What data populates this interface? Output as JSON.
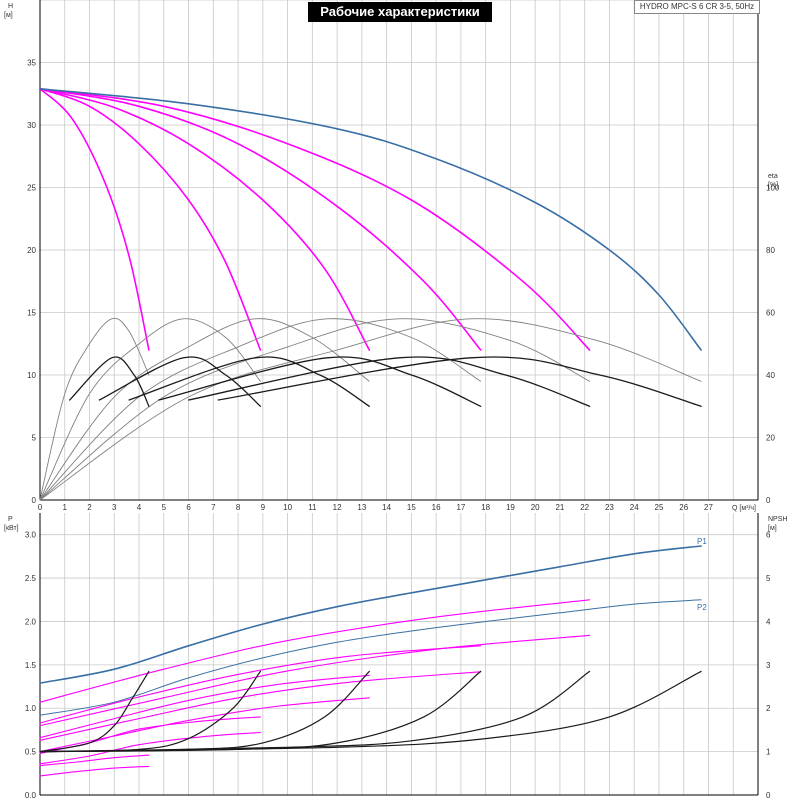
{
  "title": "Рабочие характеристики",
  "model": "HYDRO MPC-S 6 CR 3-5, 50Hz",
  "colors": {
    "grid": "#c8c8c8",
    "axis": "#000000",
    "qh_variable": "#ff00ff",
    "qh_full": "#3a6fa5",
    "efficiency": "#808080",
    "efficiency_dark": "#1a1a1a",
    "npsh": "#1a1a1a",
    "power_p1": "#3a6fa5",
    "power_p2": "#3a6fa5",
    "power_variable": "#ff00ff"
  },
  "chart_data": [
    {
      "type": "line",
      "panel": "upper",
      "xlabel": "Q [м³/ч]",
      "ylabel": "H [м]",
      "y2label": "eta [%]",
      "xlim": [
        0,
        29
      ],
      "ylim": [
        0,
        40
      ],
      "y2lim": [
        0,
        160
      ],
      "x_ticks": [
        0,
        1,
        2,
        3,
        4,
        5,
        6,
        7,
        8,
        9,
        10,
        11,
        12,
        13,
        14,
        15,
        16,
        17,
        18,
        19,
        20,
        21,
        22,
        23,
        24,
        25,
        26,
        27
      ],
      "x_tick_labels": [
        "0",
        "1",
        "2",
        "3",
        "4",
        "5",
        "6",
        "7",
        "8",
        "9",
        "10",
        "11",
        "12",
        "13",
        "14",
        "15",
        "16",
        "17",
        "18",
        "19",
        "20",
        "21",
        "22",
        "23",
        "24",
        "25",
        "26",
        "27"
      ],
      "y_ticks": [
        0,
        5,
        10,
        15,
        20,
        25,
        30,
        35
      ],
      "y_tick_labels": [
        "0",
        "5",
        "10",
        "15",
        "20",
        "25",
        "30",
        "35"
      ],
      "y2_ticks": [
        0,
        20,
        40,
        60,
        80,
        100
      ],
      "y2_tick_labels": [
        "0",
        "20",
        "40",
        "60",
        "80",
        "100"
      ],
      "y_unit_labels": [
        "H",
        "[м]"
      ],
      "y2_unit_labels": [
        "eta",
        "[%]"
      ],
      "grid": true,
      "series": [
        {
          "group": "qh_variable",
          "points": [
            [
              0,
              32.9
            ],
            [
              1.3,
              30.5
            ],
            [
              2.6,
              25.5
            ],
            [
              3.6,
              19.5
            ],
            [
              4.4,
              12.0
            ]
          ]
        },
        {
          "group": "qh_variable",
          "points": [
            [
              0,
              32.9
            ],
            [
              2,
              31.5
            ],
            [
              4,
              28.5
            ],
            [
              6,
              24.0
            ],
            [
              7.5,
              19.0
            ],
            [
              8.9,
              12.0
            ]
          ]
        },
        {
          "group": "qh_variable",
          "points": [
            [
              0,
              32.9
            ],
            [
              3,
              31.4
            ],
            [
              6,
              28.5
            ],
            [
              9,
              24.0
            ],
            [
              11.5,
              18.5
            ],
            [
              13.3,
              12.0
            ]
          ]
        },
        {
          "group": "qh_variable",
          "points": [
            [
              0,
              32.9
            ],
            [
              4,
              31.5
            ],
            [
              8,
              28.5
            ],
            [
              12,
              23.5
            ],
            [
              15.5,
              17.5
            ],
            [
              17.8,
              12.0
            ]
          ]
        },
        {
          "group": "qh_variable",
          "points": [
            [
              0,
              32.9
            ],
            [
              5,
              31.5
            ],
            [
              10,
              28.5
            ],
            [
              15,
              24.0
            ],
            [
              19.5,
              17.5
            ],
            [
              22.2,
              12.0
            ]
          ]
        },
        {
          "group": "qh_full",
          "points": [
            [
              0,
              32.9
            ],
            [
              6,
              31.7
            ],
            [
              12,
              29.7
            ],
            [
              16,
              27.3
            ],
            [
              20,
              23.8
            ],
            [
              23,
              20.0
            ],
            [
              25,
              16.4
            ],
            [
              26.7,
              12.0
            ]
          ]
        },
        {
          "group": "efficiency",
          "axis": "y2",
          "points": [
            [
              0,
              0
            ],
            [
              1,
              34
            ],
            [
              2,
              50
            ],
            [
              2.9,
              58
            ],
            [
              3.6,
              54
            ],
            [
              4.4,
              40
            ]
          ]
        },
        {
          "group": "efficiency",
          "axis": "y2",
          "points": [
            [
              0,
              0
            ],
            [
              2,
              34
            ],
            [
              4,
              50
            ],
            [
              5.8,
              58
            ],
            [
              7.5,
              52
            ],
            [
              8.9,
              38
            ]
          ]
        },
        {
          "group": "efficiency",
          "axis": "y2",
          "points": [
            [
              0,
              0
            ],
            [
              3,
              33
            ],
            [
              6,
              49
            ],
            [
              8.7,
              58
            ],
            [
              11,
              52
            ],
            [
              13.3,
              38
            ]
          ]
        },
        {
          "group": "efficiency",
          "axis": "y2",
          "points": [
            [
              0,
              0
            ],
            [
              4,
              33
            ],
            [
              8,
              49
            ],
            [
              11.6,
              58
            ],
            [
              15,
              52
            ],
            [
              17.8,
              38
            ]
          ]
        },
        {
          "group": "efficiency",
          "axis": "y2",
          "points": [
            [
              0,
              0
            ],
            [
              5,
              33
            ],
            [
              10,
              49
            ],
            [
              14.5,
              58
            ],
            [
              19,
              51
            ],
            [
              22.2,
              38
            ]
          ]
        },
        {
          "group": "efficiency",
          "axis": "y2",
          "points": [
            [
              0,
              0
            ],
            [
              6,
              33
            ],
            [
              12,
              48
            ],
            [
              17.4,
              58
            ],
            [
              22.5,
              51
            ],
            [
              26.7,
              38
            ]
          ]
        },
        {
          "group": "efficiency_dark",
          "axis": "y2",
          "points": [
            [
              1.2,
              32
            ],
            [
              2.9,
              45.5
            ],
            [
              3.8,
              40
            ],
            [
              4.4,
              30
            ]
          ]
        },
        {
          "group": "efficiency_dark",
          "axis": "y2",
          "points": [
            [
              2.4,
              32
            ],
            [
              5.8,
              45.5
            ],
            [
              7.5,
              40
            ],
            [
              8.9,
              30
            ]
          ]
        },
        {
          "group": "efficiency_dark",
          "axis": "y2",
          "points": [
            [
              3.6,
              32
            ],
            [
              8.7,
              45.5
            ],
            [
              11.3,
              40
            ],
            [
              13.3,
              30
            ]
          ]
        },
        {
          "group": "efficiency_dark",
          "axis": "y2",
          "points": [
            [
              4.8,
              32
            ],
            [
              11.6,
              45.5
            ],
            [
              15,
              40
            ],
            [
              17.8,
              30
            ]
          ]
        },
        {
          "group": "efficiency_dark",
          "axis": "y2",
          "points": [
            [
              6,
              32
            ],
            [
              14.5,
              45.5
            ],
            [
              18.8,
              40
            ],
            [
              22.2,
              30
            ]
          ]
        },
        {
          "group": "efficiency_dark",
          "axis": "y2",
          "points": [
            [
              7.2,
              32
            ],
            [
              17.4,
              45.5
            ],
            [
              22.6,
              40
            ],
            [
              26.7,
              30
            ]
          ]
        }
      ]
    },
    {
      "type": "line",
      "panel": "lower",
      "ylabel": "P [кВт]",
      "y2label": "NPSH [м]",
      "xlim": [
        0,
        29
      ],
      "ylim": [
        0,
        3.25
      ],
      "y2lim": [
        0,
        6.5
      ],
      "y_ticks": [
        0,
        0.5,
        1.0,
        1.5,
        2.0,
        2.5,
        3.0
      ],
      "y_tick_labels": [
        "0.0",
        "0.5",
        "1.0",
        "1.5",
        "2.0",
        "2.5",
        "3.0"
      ],
      "y2_ticks": [
        0,
        1,
        2,
        3,
        4,
        5,
        6
      ],
      "y2_tick_labels": [
        "0",
        "1",
        "2",
        "3",
        "4",
        "5",
        "6"
      ],
      "y_unit_labels": [
        "P",
        "[кВт]"
      ],
      "y2_unit_labels": [
        "NPSH",
        "[м]"
      ],
      "grid": true,
      "series": [
        {
          "name": "P1",
          "group": "power_p1",
          "label": true,
          "points": [
            [
              0,
              1.29
            ],
            [
              3,
              1.45
            ],
            [
              6,
              1.72
            ],
            [
              9,
              1.97
            ],
            [
              12,
              2.17
            ],
            [
              15,
              2.33
            ],
            [
              18,
              2.48
            ],
            [
              21,
              2.63
            ],
            [
              24,
              2.78
            ],
            [
              26.7,
              2.87
            ]
          ]
        },
        {
          "name": "P2",
          "group": "power_p2",
          "label": true,
          "points": [
            [
              0,
              0.92
            ],
            [
              3,
              1.07
            ],
            [
              6,
              1.35
            ],
            [
              9,
              1.58
            ],
            [
              12,
              1.76
            ],
            [
              15,
              1.89
            ],
            [
              18,
              2.0
            ],
            [
              21,
              2.1
            ],
            [
              24,
              2.2
            ],
            [
              26.7,
              2.25
            ]
          ]
        },
        {
          "group": "power_variable",
          "points": [
            [
              0,
              0.34
            ],
            [
              1.5,
              0.38
            ],
            [
              3,
              0.43
            ],
            [
              4.4,
              0.46
            ]
          ]
        },
        {
          "group": "power_variable",
          "points": [
            [
              0,
              0.48
            ],
            [
              2,
              0.6
            ],
            [
              4,
              0.76
            ],
            [
              6.5,
              0.85
            ],
            [
              8.9,
              0.9
            ]
          ]
        },
        {
          "group": "power_variable",
          "points": [
            [
              0,
              0.66
            ],
            [
              3,
              0.88
            ],
            [
              6,
              1.09
            ],
            [
              9.5,
              1.27
            ],
            [
              13.3,
              1.38
            ]
          ]
        },
        {
          "group": "power_variable",
          "points": [
            [
              0,
              0.83
            ],
            [
              4,
              1.13
            ],
            [
              8,
              1.39
            ],
            [
              12.5,
              1.6
            ],
            [
              17.8,
              1.72
            ]
          ]
        },
        {
          "group": "power_variable",
          "points": [
            [
              0,
              1.07
            ],
            [
              5,
              1.45
            ],
            [
              10,
              1.78
            ],
            [
              16,
              2.05
            ],
            [
              22.2,
              2.25
            ]
          ]
        },
        {
          "group": "power_variable",
          "points": [
            [
              0,
              0.22
            ],
            [
              1.5,
              0.27
            ],
            [
              3,
              0.31
            ],
            [
              4.4,
              0.33
            ]
          ]
        },
        {
          "group": "power_variable",
          "points": [
            [
              0,
              0.36
            ],
            [
              2,
              0.45
            ],
            [
              4,
              0.58
            ],
            [
              6.5,
              0.67
            ],
            [
              8.9,
              0.72
            ]
          ]
        },
        {
          "group": "power_variable",
          "points": [
            [
              0,
              0.5
            ],
            [
              3,
              0.68
            ],
            [
              6,
              0.86
            ],
            [
              9.5,
              1.02
            ],
            [
              13.3,
              1.12
            ]
          ]
        },
        {
          "group": "power_variable",
          "points": [
            [
              0,
              0.63
            ],
            [
              4,
              0.88
            ],
            [
              8,
              1.12
            ],
            [
              12.5,
              1.3
            ],
            [
              17.8,
              1.42
            ]
          ]
        },
        {
          "group": "power_variable",
          "points": [
            [
              0,
              0.8
            ],
            [
              5,
              1.12
            ],
            [
              10,
              1.43
            ],
            [
              16,
              1.68
            ],
            [
              22.2,
              1.84
            ]
          ]
        },
        {
          "group": "npsh",
          "axis": "y2",
          "points": [
            [
              0,
              1.0
            ],
            [
              2,
              1.2
            ],
            [
              3,
              1.6
            ],
            [
              3.7,
              2.2
            ],
            [
              4.4,
              2.85
            ]
          ]
        },
        {
          "group": "npsh",
          "axis": "y2",
          "points": [
            [
              0,
              1.0
            ],
            [
              4,
              1.05
            ],
            [
              6,
              1.3
            ],
            [
              7.8,
              2.0
            ],
            [
              8.9,
              2.85
            ]
          ]
        },
        {
          "group": "npsh",
          "axis": "y2",
          "points": [
            [
              0,
              1.0
            ],
            [
              6,
              1.05
            ],
            [
              9,
              1.2
            ],
            [
              11.5,
              1.8
            ],
            [
              13.3,
              2.85
            ]
          ]
        },
        {
          "group": "npsh",
          "axis": "y2",
          "points": [
            [
              0,
              1.0
            ],
            [
              8,
              1.05
            ],
            [
              12,
              1.2
            ],
            [
              15.5,
              1.8
            ],
            [
              17.8,
              2.85
            ]
          ]
        },
        {
          "group": "npsh",
          "axis": "y2",
          "points": [
            [
              0,
              1.0
            ],
            [
              10,
              1.1
            ],
            [
              15,
              1.25
            ],
            [
              19.5,
              1.8
            ],
            [
              22.2,
              2.85
            ]
          ]
        },
        {
          "group": "npsh",
          "axis": "y2",
          "points": [
            [
              0,
              1.0
            ],
            [
              12,
              1.1
            ],
            [
              18,
              1.3
            ],
            [
              23,
              1.8
            ],
            [
              26.7,
              2.85
            ]
          ]
        }
      ]
    }
  ]
}
